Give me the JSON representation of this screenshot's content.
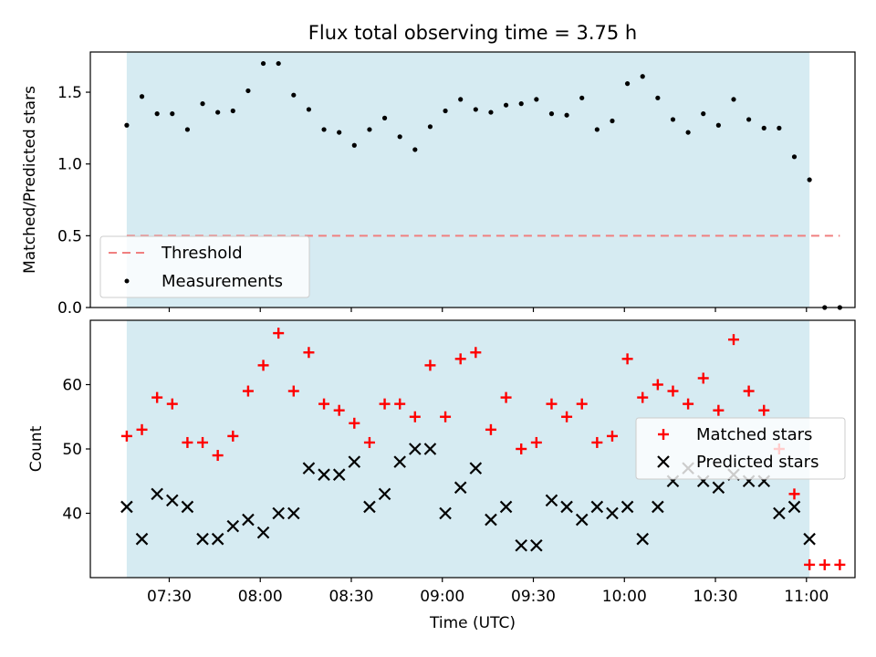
{
  "chart_data": [
    {
      "type": "scatter",
      "title": "Flux total observing time = 3.75 h",
      "xlabel": "",
      "ylabel": "Matched/Predicted stars",
      "ylim": [
        0,
        1.78
      ],
      "yticks": [
        "0.0",
        "0.5",
        "1.0",
        "1.5"
      ],
      "ytick_values": [
        0,
        0.5,
        1.0,
        1.5
      ],
      "observing_window": [
        "07:16",
        "11:01"
      ],
      "threshold": {
        "name": "Threshold",
        "value": 0.5,
        "color": "#f08080",
        "style": "dashed"
      },
      "legend_position": "lower-left",
      "series": [
        {
          "name": "Measurements",
          "color": "#000000",
          "marker": "dot",
          "x": [
            "07:16",
            "07:21",
            "07:26",
            "07:31",
            "07:36",
            "07:41",
            "07:46",
            "07:51",
            "07:56",
            "08:01",
            "08:06",
            "08:11",
            "08:16",
            "08:21",
            "08:26",
            "08:31",
            "08:36",
            "08:41",
            "08:46",
            "08:51",
            "08:56",
            "09:01",
            "09:06",
            "09:11",
            "09:16",
            "09:21",
            "09:26",
            "09:31",
            "09:36",
            "09:41",
            "09:46",
            "09:51",
            "09:56",
            "10:01",
            "10:06",
            "10:11",
            "10:16",
            "10:21",
            "10:26",
            "10:31",
            "10:36",
            "10:41",
            "10:46",
            "10:51",
            "10:56",
            "11:01",
            "11:06",
            "11:11"
          ],
          "values": [
            1.27,
            1.47,
            1.35,
            1.35,
            1.24,
            1.42,
            1.36,
            1.37,
            1.51,
            1.7,
            1.7,
            1.48,
            1.38,
            1.24,
            1.22,
            1.13,
            1.24,
            1.32,
            1.19,
            1.1,
            1.26,
            1.37,
            1.45,
            1.38,
            1.36,
            1.41,
            1.42,
            1.45,
            1.35,
            1.34,
            1.46,
            1.24,
            1.3,
            1.56,
            1.61,
            1.46,
            1.31,
            1.22,
            1.35,
            1.27,
            1.45,
            1.31,
            1.25,
            1.25,
            1.05,
            0.89,
            0.0,
            0.0
          ]
        }
      ]
    },
    {
      "type": "scatter",
      "title": "",
      "xlabel": "Time (UTC)",
      "ylabel": "Count",
      "ylim": [
        30,
        70
      ],
      "yticks": [
        "40",
        "50",
        "60"
      ],
      "ytick_values": [
        40,
        50,
        60
      ],
      "xlim": [
        "07:04",
        "11:16"
      ],
      "xticks": [
        "07:30",
        "08:00",
        "08:30",
        "09:00",
        "09:30",
        "10:00",
        "10:30",
        "11:00"
      ],
      "observing_window": [
        "07:16",
        "11:01"
      ],
      "legend_position": "right",
      "series": [
        {
          "name": "Matched stars",
          "color": "#ff0000",
          "marker": "plus",
          "x": [
            "07:16",
            "07:21",
            "07:26",
            "07:31",
            "07:36",
            "07:41",
            "07:46",
            "07:51",
            "07:56",
            "08:01",
            "08:06",
            "08:11",
            "08:16",
            "08:21",
            "08:26",
            "08:31",
            "08:36",
            "08:41",
            "08:46",
            "08:51",
            "08:56",
            "09:01",
            "09:06",
            "09:11",
            "09:16",
            "09:21",
            "09:26",
            "09:31",
            "09:36",
            "09:41",
            "09:46",
            "09:51",
            "09:56",
            "10:01",
            "10:06",
            "10:11",
            "10:16",
            "10:21",
            "10:26",
            "10:31",
            "10:36",
            "10:41",
            "10:46",
            "10:51",
            "10:56",
            "11:01",
            "11:06",
            "11:11"
          ],
          "values": [
            52,
            53,
            58,
            57,
            51,
            51,
            49,
            52,
            59,
            63,
            68,
            59,
            65,
            57,
            56,
            54,
            51,
            57,
            57,
            55,
            63,
            55,
            64,
            65,
            53,
            58,
            50,
            51,
            57,
            55,
            57,
            51,
            52,
            64,
            58,
            60,
            59,
            57,
            61,
            56,
            67,
            59,
            56,
            50,
            43,
            32,
            32,
            32
          ]
        },
        {
          "name": "Predicted stars",
          "color": "#000000",
          "marker": "x",
          "x": [
            "07:16",
            "07:21",
            "07:26",
            "07:31",
            "07:36",
            "07:41",
            "07:46",
            "07:51",
            "07:56",
            "08:01",
            "08:06",
            "08:11",
            "08:16",
            "08:21",
            "08:26",
            "08:31",
            "08:36",
            "08:41",
            "08:46",
            "08:51",
            "08:56",
            "09:01",
            "09:06",
            "09:11",
            "09:16",
            "09:21",
            "09:26",
            "09:31",
            "09:36",
            "09:41",
            "09:46",
            "09:51",
            "09:56",
            "10:01",
            "10:06",
            "10:11",
            "10:16",
            "10:21",
            "10:26",
            "10:31",
            "10:36",
            "10:41",
            "10:46",
            "10:51",
            "10:56",
            "11:01"
          ],
          "values": [
            41,
            36,
            43,
            42,
            41,
            36,
            36,
            38,
            39,
            37,
            40,
            40,
            47,
            46,
            46,
            48,
            41,
            43,
            48,
            50,
            50,
            40,
            44,
            47,
            39,
            41,
            35,
            35,
            42,
            41,
            39,
            41,
            40,
            41,
            36,
            41,
            45,
            47,
            45,
            44,
            46,
            45,
            45,
            40,
            41,
            36
          ]
        }
      ]
    }
  ]
}
